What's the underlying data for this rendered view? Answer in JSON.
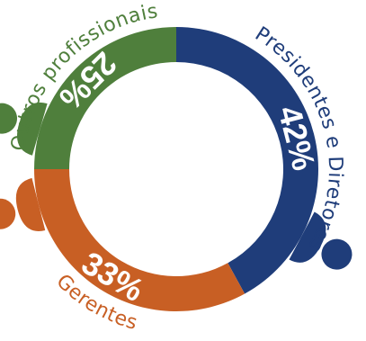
{
  "chart_data": {
    "type": "pie",
    "variant": "donut",
    "title": "",
    "slices": [
      {
        "label": "Presidentes e Diretores",
        "value": 42,
        "value_text": "42%",
        "color": "#1f3d7a",
        "icon": "person-icon"
      },
      {
        "label": "Gerentes",
        "value": 33,
        "value_text": "33%",
        "color": "#c85f24",
        "icon": "person-icon"
      },
      {
        "label": "Outros profissionais",
        "value": 25,
        "value_text": "25%",
        "color": "#4f7f3c",
        "icon": "person-icon"
      }
    ]
  }
}
